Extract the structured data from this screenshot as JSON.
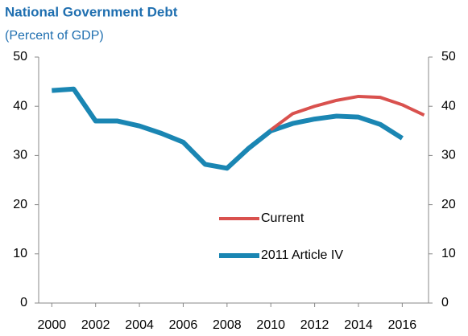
{
  "chart_data": {
    "type": "line",
    "title": "National Government Debt",
    "subtitle": "(Percent of GDP)",
    "x": [
      2000,
      2001,
      2002,
      2003,
      2004,
      2005,
      2006,
      2007,
      2008,
      2009,
      2010,
      2011,
      2012,
      2013,
      2014,
      2015,
      2016,
      2017
    ],
    "series": [
      {
        "name": "Current",
        "color": "#d9514e",
        "values": [
          null,
          null,
          null,
          null,
          null,
          null,
          null,
          null,
          null,
          null,
          35.2,
          38.5,
          40.0,
          41.2,
          42.0,
          41.8,
          40.3,
          38.2
        ]
      },
      {
        "name": "2011 Article IV",
        "color": "#1a86b3",
        "values": [
          43.2,
          43.5,
          37.0,
          37.0,
          36.0,
          34.5,
          32.7,
          28.2,
          27.4,
          31.5,
          35.0,
          36.5,
          37.4,
          38.0,
          37.8,
          36.3,
          33.5,
          null
        ]
      }
    ],
    "xlim": [
      1999.4,
      2017.2
    ],
    "xticks": [
      2000,
      2002,
      2004,
      2006,
      2008,
      2010,
      2012,
      2014,
      2016
    ],
    "ylim": [
      0,
      50
    ],
    "yticks": [
      0,
      10,
      20,
      30,
      40,
      50
    ],
    "y2lim": [
      0,
      50
    ],
    "y2ticks": [
      0,
      10,
      20,
      30,
      40,
      50
    ],
    "grid": false
  }
}
